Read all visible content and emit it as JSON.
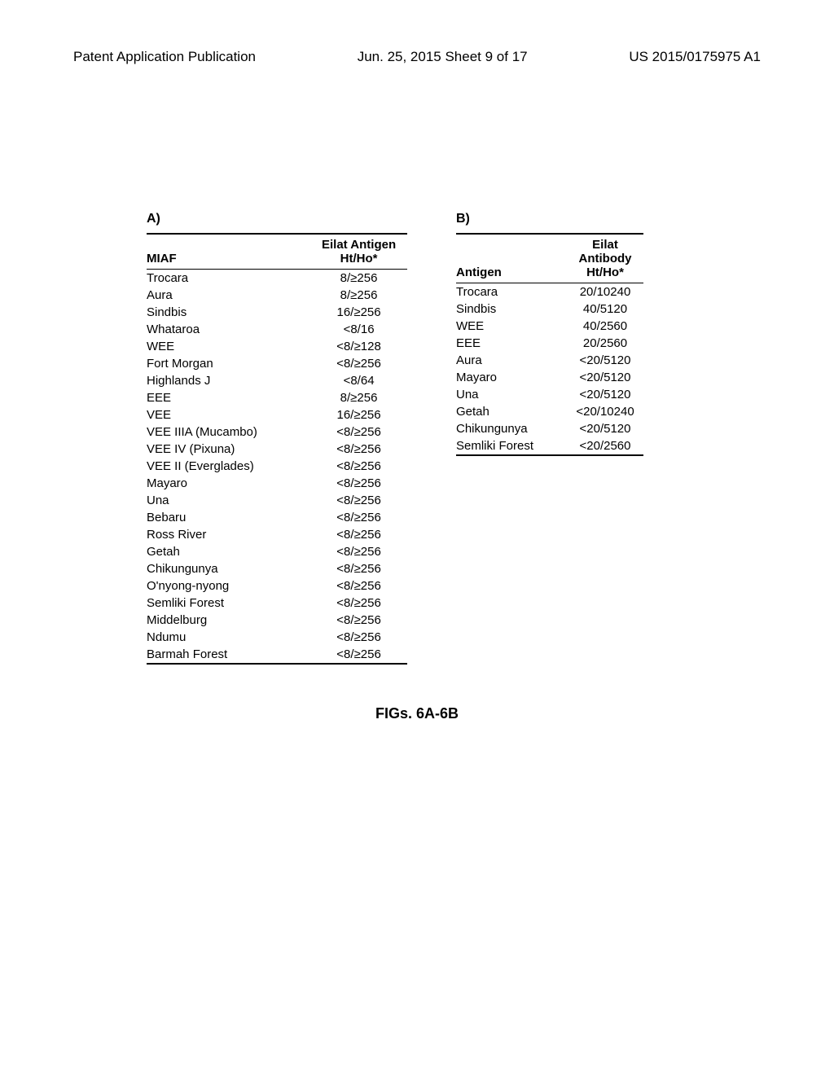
{
  "header": {
    "left": "Patent Application Publication",
    "center": "Jun. 25, 2015  Sheet 9 of 17",
    "right": "US 2015/0175975 A1"
  },
  "tableA": {
    "label": "A)",
    "col1_header": "MIAF",
    "col2_header_line1": "Eilat Antigen",
    "col2_header_line2": "Ht/Ho*",
    "rows": [
      {
        "name": "Trocara",
        "value": "8/≥256"
      },
      {
        "name": "Aura",
        "value": "8/≥256"
      },
      {
        "name": "Sindbis",
        "value": "16/≥256"
      },
      {
        "name": "Whataroa",
        "value": "<8/16"
      },
      {
        "name": "WEE",
        "value": "<8/≥128"
      },
      {
        "name": "Fort Morgan",
        "value": "<8/≥256"
      },
      {
        "name": "Highlands J",
        "value": "<8/64"
      },
      {
        "name": "EEE",
        "value": "8/≥256"
      },
      {
        "name": "VEE",
        "value": "16/≥256"
      },
      {
        "name": "VEE IIIA (Mucambo)",
        "value": "<8/≥256"
      },
      {
        "name": "VEE IV (Pixuna)",
        "value": "<8/≥256"
      },
      {
        "name": "VEE II (Everglades)",
        "value": "<8/≥256"
      },
      {
        "name": "Mayaro",
        "value": "<8/≥256"
      },
      {
        "name": "Una",
        "value": "<8/≥256"
      },
      {
        "name": "Bebaru",
        "value": "<8/≥256"
      },
      {
        "name": "Ross River",
        "value": "<8/≥256"
      },
      {
        "name": "Getah",
        "value": "<8/≥256"
      },
      {
        "name": "Chikungunya",
        "value": "<8/≥256"
      },
      {
        "name": "O'nyong-nyong",
        "value": "<8/≥256"
      },
      {
        "name": "Semliki Forest",
        "value": "<8/≥256"
      },
      {
        "name": "Middelburg",
        "value": "<8/≥256"
      },
      {
        "name": "Ndumu",
        "value": "<8/≥256"
      },
      {
        "name": "Barmah Forest",
        "value": "<8/≥256"
      }
    ]
  },
  "tableB": {
    "label": "B)",
    "col1_header": "Antigen",
    "col2_header_line1": "Eilat",
    "col2_header_line2": "Antibody",
    "col2_header_line3": "Ht/Ho*",
    "rows": [
      {
        "name": "Trocara",
        "value": "20/10240"
      },
      {
        "name": "Sindbis",
        "value": "40/5120"
      },
      {
        "name": "WEE",
        "value": "40/2560"
      },
      {
        "name": "EEE",
        "value": "20/2560"
      },
      {
        "name": "Aura",
        "value": "<20/5120"
      },
      {
        "name": "Mayaro",
        "value": "<20/5120"
      },
      {
        "name": "Una",
        "value": "<20/5120"
      },
      {
        "name": "Getah",
        "value": "<20/10240"
      },
      {
        "name": "Chikungunya",
        "value": "<20/5120"
      },
      {
        "name": "Semliki Forest",
        "value": "<20/2560"
      }
    ]
  },
  "figureCaption": "FIGs. 6A-6B"
}
